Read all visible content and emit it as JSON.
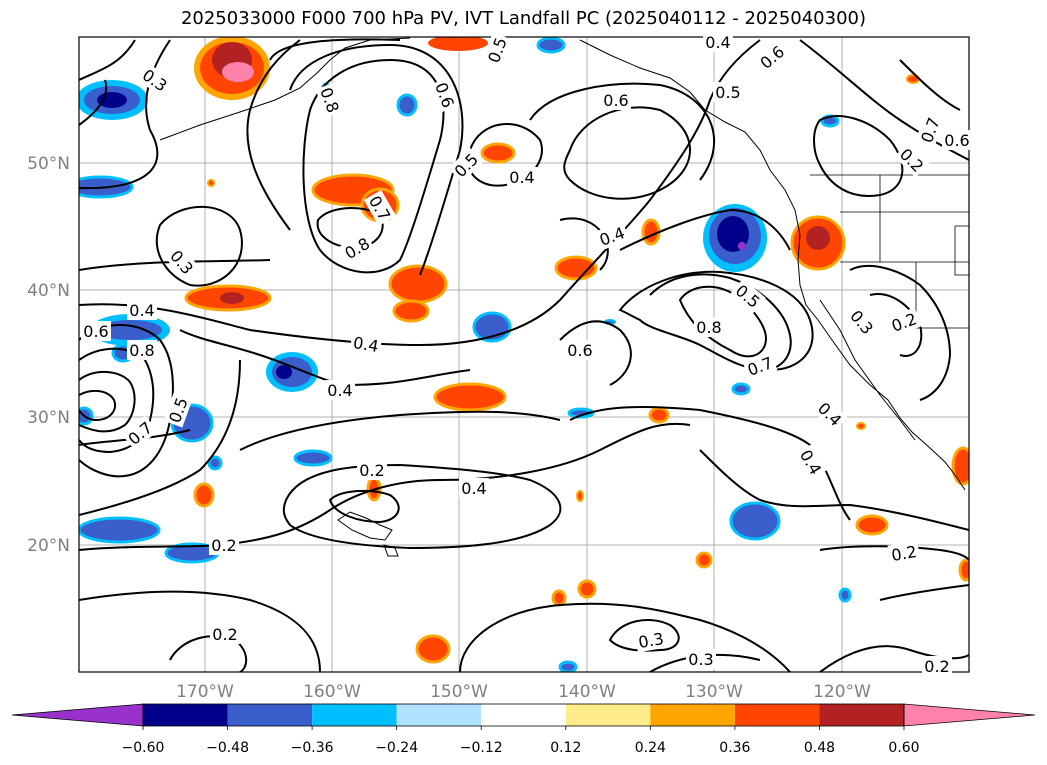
{
  "title": "2025033000 F000 700 hPa PV, IVT Landfall PC (2025040112 - 2025040300)",
  "lat_ticks": [
    "50°N",
    "40°N",
    "30°N",
    "20°N"
  ],
  "lon_ticks": [
    "170°W",
    "160°W",
    "150°W",
    "140°W",
    "130°W",
    "120°W"
  ],
  "contour_labels": [
    "0.3",
    "0.5",
    "0.6",
    "0.8",
    "0.4",
    "0.5",
    "0.6",
    "0.5",
    "0.6",
    "0.4",
    "0.7",
    "0.7",
    "0.6",
    "0.8",
    "0.3",
    "0.4",
    "0.4",
    "0.4",
    "0.6",
    "0.8",
    "0.3",
    "0.2",
    "0.4",
    "0.6",
    "0.8",
    "0.5",
    "0.7",
    "0.5",
    "0.7",
    "0.4",
    "0.4",
    "0.2",
    "0.4",
    "0.3",
    "0.2",
    "0.2",
    "0.2",
    "0.3",
    "0.2",
    "0.2"
  ],
  "colorbar": {
    "ticks": [
      "−0.60",
      "−0.48",
      "−0.36",
      "−0.24",
      "−0.12",
      "0.12",
      "0.24",
      "0.36",
      "0.48",
      "0.60"
    ],
    "colors": [
      "#9932cc",
      "#00008b",
      "#3a5fcd",
      "#00bfff",
      "#b0e2ff",
      "#ffffff",
      "#ffec8b",
      "#ffa500",
      "#ff4500",
      "#b22222",
      "#ff82ab",
      "#ff82ab"
    ]
  }
}
